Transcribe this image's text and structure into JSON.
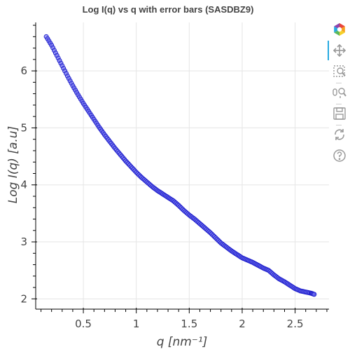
{
  "chart_data": {
    "type": "scatter",
    "title": "Log I(q) vs q with error bars (SASDBZ9)",
    "xlabel": "q [nm⁻¹]",
    "ylabel": "Log I(q) [a.u]",
    "xlim": [
      0.05,
      2.82
    ],
    "ylim": [
      1.82,
      6.85
    ],
    "x_ticks": [
      0.5,
      1,
      1.5,
      2,
      2.5
    ],
    "x_tick_labels": [
      "0.5",
      "1",
      "1.5",
      "2",
      "2.5"
    ],
    "y_ticks": [
      2,
      3,
      4,
      5,
      6
    ],
    "y_tick_labels": [
      "2",
      "3",
      "4",
      "5",
      "6"
    ],
    "grid": true,
    "marker_color": "#2222cc",
    "marker_fill": "#6b6bf0",
    "series": [
      {
        "x": [
          0.15,
          0.2,
          0.25,
          0.3,
          0.35,
          0.4,
          0.45,
          0.5,
          0.55,
          0.6,
          0.65,
          0.7,
          0.75,
          0.8,
          0.85,
          0.9,
          0.95,
          1.0,
          1.05,
          1.1,
          1.15,
          1.2,
          1.25,
          1.3,
          1.35,
          1.4,
          1.45,
          1.5,
          1.55,
          1.6,
          1.65,
          1.7,
          1.75,
          1.8,
          1.85,
          1.9,
          1.95,
          2.0,
          2.05,
          2.1,
          2.15,
          2.2,
          2.25,
          2.3,
          2.35,
          2.4,
          2.45,
          2.5,
          2.55,
          2.6,
          2.65,
          2.68
        ],
        "y": [
          6.6,
          6.45,
          6.27,
          6.09,
          5.91,
          5.74,
          5.58,
          5.43,
          5.29,
          5.15,
          5.01,
          4.88,
          4.76,
          4.64,
          4.53,
          4.42,
          4.32,
          4.22,
          4.13,
          4.05,
          3.97,
          3.9,
          3.84,
          3.78,
          3.72,
          3.64,
          3.55,
          3.47,
          3.4,
          3.32,
          3.24,
          3.16,
          3.07,
          2.98,
          2.91,
          2.84,
          2.78,
          2.72,
          2.68,
          2.64,
          2.59,
          2.54,
          2.5,
          2.42,
          2.35,
          2.3,
          2.24,
          2.18,
          2.14,
          2.12,
          2.1,
          2.08
        ]
      }
    ]
  },
  "toolbar": {
    "logo_icon": "bokeh-logo-icon",
    "tools": [
      "pan-icon",
      "box-zoom-icon",
      "wheel-zoom-icon",
      "save-icon",
      "reset-icon",
      "help-icon"
    ],
    "active_color": "#26aae1"
  }
}
